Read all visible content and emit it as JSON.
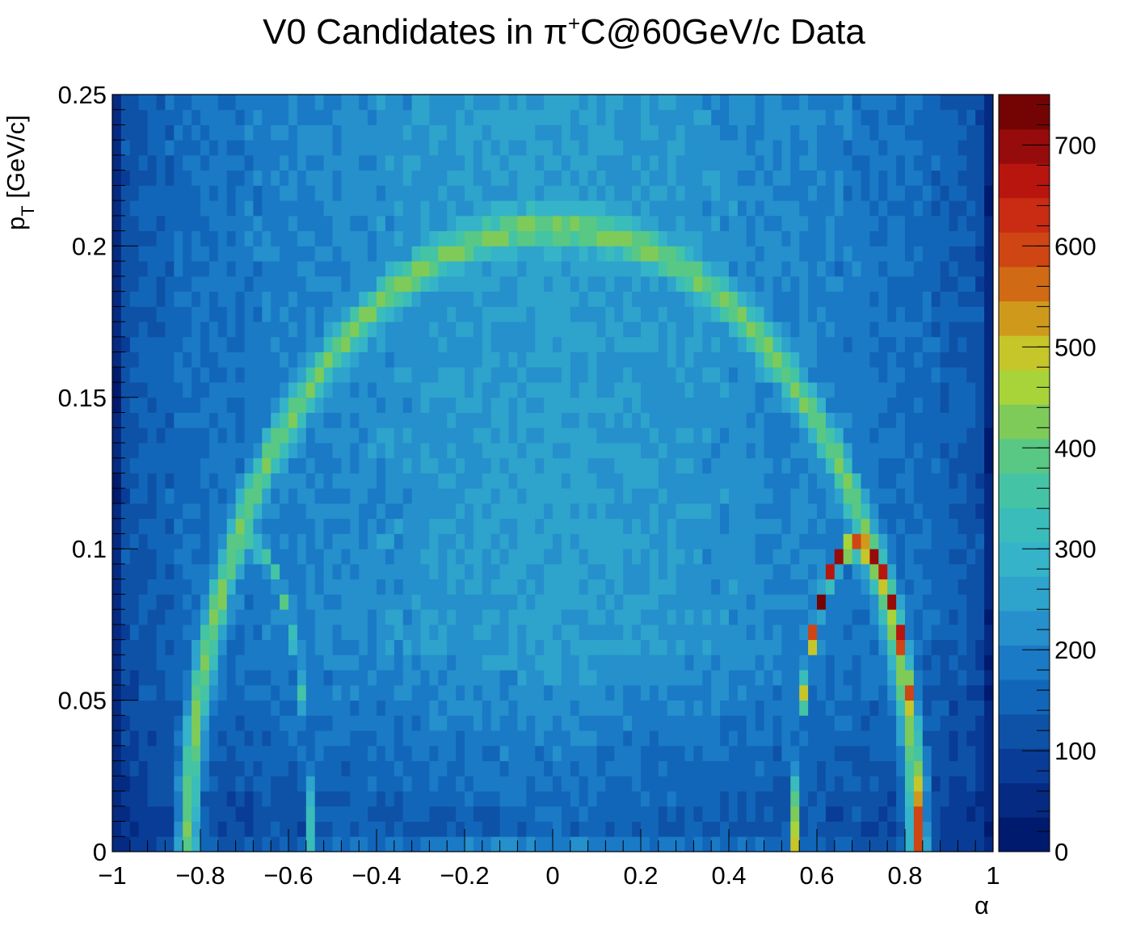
{
  "chart_data": {
    "type": "heatmap",
    "title": {
      "prefix": "V0 Candidates in ",
      "pi": "π",
      "sup": "+",
      "suffix": "C@60GeV/c Data"
    },
    "xlabel": "α",
    "ylabel": {
      "main": "p",
      "sub": "T",
      "unit": " [GeV/c]"
    },
    "xlim": [
      -1,
      1
    ],
    "ylim": [
      0,
      0.25
    ],
    "zlim": [
      0,
      750
    ],
    "x_ticks": [
      {
        "value": -1,
        "label": "−1"
      },
      {
        "value": -0.8,
        "label": "−0.8"
      },
      {
        "value": -0.6,
        "label": "−0.6"
      },
      {
        "value": -0.4,
        "label": "−0.4"
      },
      {
        "value": -0.2,
        "label": "−0.2"
      },
      {
        "value": 0,
        "label": "0"
      },
      {
        "value": 0.2,
        "label": "0.2"
      },
      {
        "value": 0.4,
        "label": "0.4"
      },
      {
        "value": 0.6,
        "label": "0.6"
      },
      {
        "value": 0.8,
        "label": "0.8"
      },
      {
        "value": 1,
        "label": "1"
      }
    ],
    "y_ticks": [
      {
        "value": 0,
        "label": "0"
      },
      {
        "value": 0.05,
        "label": "0.05"
      },
      {
        "value": 0.1,
        "label": "0.1"
      },
      {
        "value": 0.15,
        "label": "0.15"
      },
      {
        "value": 0.2,
        "label": "0.2"
      },
      {
        "value": 0.25,
        "label": "0.25"
      }
    ],
    "z_ticks": [
      {
        "value": 0,
        "label": "0"
      },
      {
        "value": 100,
        "label": "100"
      },
      {
        "value": 200,
        "label": "200"
      },
      {
        "value": 300,
        "label": "300"
      },
      {
        "value": 400,
        "label": "400"
      },
      {
        "value": 500,
        "label": "500"
      },
      {
        "value": 600,
        "label": "600"
      },
      {
        "value": 700,
        "label": "700"
      }
    ],
    "bins": {
      "nx": 100,
      "ny": 50
    },
    "colormap": [
      "#001a6e",
      "#042a82",
      "#093c96",
      "#0e52a8",
      "#1266b9",
      "#1a7ac6",
      "#2590cc",
      "#2ea3cc",
      "#35b3c8",
      "#3abdba",
      "#44c4a4",
      "#58c884",
      "#7ecb5a",
      "#a8d43a",
      "#c6c52a",
      "#cf9a1c",
      "#d16a14",
      "#cf4514",
      "#c92c12",
      "#b8150f",
      "#960b0b",
      "#740404"
    ],
    "features": {
      "background_bulk_level": 250,
      "edge_level": 30,
      "bottom_row_level": 200,
      "k0s_band": {
        "center_alpha": 0,
        "radius_alpha": 0.828,
        "peak_pt": 0.206,
        "level": 420
      },
      "lambda_bar_band": {
        "center_alpha": -0.69,
        "radius_alpha": 0.14,
        "peak_pt": 0.101,
        "level": 360
      },
      "lambda_band": {
        "center_alpha": 0.69,
        "radius_alpha": 0.14,
        "peak_pt": 0.101,
        "level": 720
      }
    }
  }
}
